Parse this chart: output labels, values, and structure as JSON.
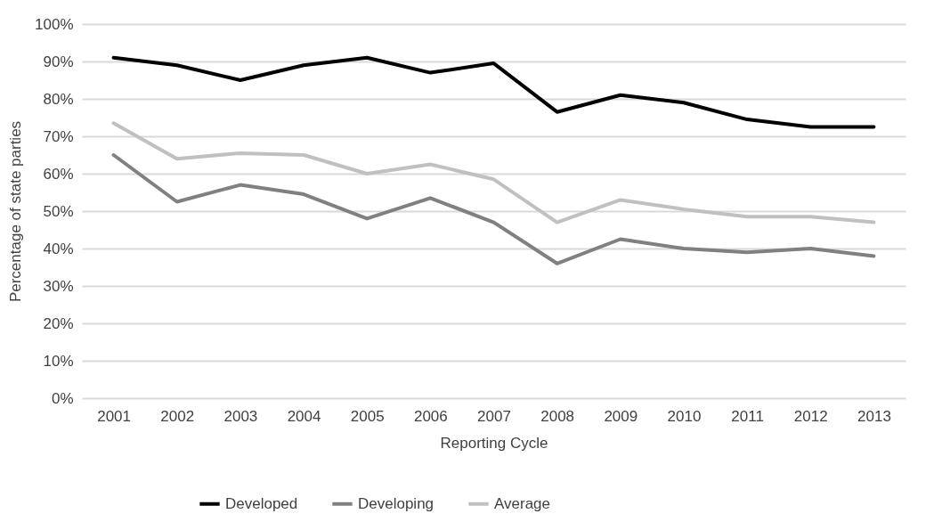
{
  "chart_data": {
    "type": "line",
    "xlabel": "Reporting Cycle",
    "ylabel": "Percentage of state parties",
    "categories": [
      "2001",
      "2002",
      "2003",
      "2004",
      "2005",
      "2006",
      "2007",
      "2008",
      "2009",
      "2010",
      "2011",
      "2012",
      "2013"
    ],
    "series": [
      {
        "name": "Developed",
        "color": "#000000",
        "values": [
          91,
          89,
          85,
          89,
          91,
          87,
          89.5,
          76.5,
          81,
          79,
          74.5,
          72.5,
          72.5
        ]
      },
      {
        "name": "Developing",
        "color": "#808080",
        "values": [
          65,
          52.5,
          57,
          54.5,
          48,
          53.5,
          47,
          36,
          42.5,
          40,
          39,
          40,
          38
        ]
      },
      {
        "name": "Average",
        "color": "#c0c0c0",
        "values": [
          73.5,
          64,
          65.5,
          65,
          60,
          62.5,
          58.5,
          47,
          53,
          50.5,
          48.5,
          48.5,
          47
        ]
      }
    ],
    "ylim": [
      0,
      100
    ],
    "yticks": [
      {
        "value": 0,
        "label": "0%"
      },
      {
        "value": 10,
        "label": "10%"
      },
      {
        "value": 20,
        "label": "20%"
      },
      {
        "value": 30,
        "label": "30%"
      },
      {
        "value": 40,
        "label": "40%"
      },
      {
        "value": 50,
        "label": "50%"
      },
      {
        "value": 60,
        "label": "60%"
      },
      {
        "value": 70,
        "label": "70%"
      },
      {
        "value": 80,
        "label": "80%"
      },
      {
        "value": 90,
        "label": "90%"
      },
      {
        "value": 100,
        "label": "100%"
      }
    ],
    "grid": "y",
    "legend": "bottom",
    "marker": "none",
    "line_style": "solid"
  }
}
